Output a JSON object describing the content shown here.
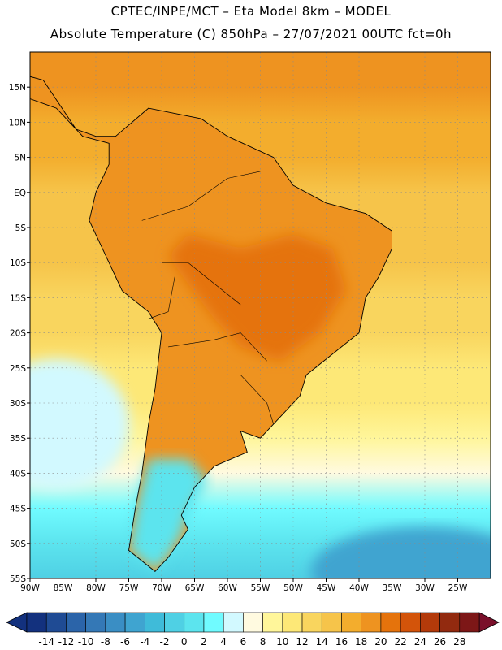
{
  "header": {
    "line1": "CPTEC/INPE/MCT –  Eta Model 8km – MODEL",
    "line2": "Absolute Temperature (C) 850hPa – 27/07/2021 00UTC fct=0h"
  },
  "map": {
    "lon_range": [
      -90,
      -20
    ],
    "lat_range": [
      -55,
      20
    ],
    "lat_ticks": [
      {
        "value": 15,
        "label": "15N"
      },
      {
        "value": 10,
        "label": "10N"
      },
      {
        "value": 5,
        "label": "5N"
      },
      {
        "value": 0,
        "label": "EQ"
      },
      {
        "value": -5,
        "label": "5S"
      },
      {
        "value": -10,
        "label": "10S"
      },
      {
        "value": -15,
        "label": "15S"
      },
      {
        "value": -20,
        "label": "20S"
      },
      {
        "value": -25,
        "label": "25S"
      },
      {
        "value": -30,
        "label": "30S"
      },
      {
        "value": -35,
        "label": "35S"
      },
      {
        "value": -40,
        "label": "40S"
      },
      {
        "value": -45,
        "label": "45S"
      },
      {
        "value": -50,
        "label": "50S"
      },
      {
        "value": -55,
        "label": "55S"
      }
    ],
    "lon_ticks": [
      {
        "value": -90,
        "label": "90W"
      },
      {
        "value": -85,
        "label": "85W"
      },
      {
        "value": -80,
        "label": "80W"
      },
      {
        "value": -75,
        "label": "75W"
      },
      {
        "value": -70,
        "label": "70W"
      },
      {
        "value": -65,
        "label": "65W"
      },
      {
        "value": -60,
        "label": "60W"
      },
      {
        "value": -55,
        "label": "55W"
      },
      {
        "value": -50,
        "label": "50W"
      },
      {
        "value": -45,
        "label": "45W"
      },
      {
        "value": -40,
        "label": "40W"
      },
      {
        "value": -35,
        "label": "35W"
      },
      {
        "value": -30,
        "label": "30W"
      },
      {
        "value": -25,
        "label": "25W"
      }
    ],
    "bands": [
      {
        "lat": 20,
        "temp": 19
      },
      {
        "lat": 15,
        "temp": 18
      },
      {
        "lat": 10,
        "temp": 17
      },
      {
        "lat": 5,
        "temp": 16
      },
      {
        "lat": 0,
        "temp": 15
      },
      {
        "lat": -5,
        "temp": 15
      },
      {
        "lat": -10,
        "temp": 14
      },
      {
        "lat": -15,
        "temp": 13
      },
      {
        "lat": -20,
        "temp": 12
      },
      {
        "lat": -25,
        "temp": 11
      },
      {
        "lat": -30,
        "temp": 10
      },
      {
        "lat": -35,
        "temp": 8
      },
      {
        "lat": -40,
        "temp": 6
      },
      {
        "lat": -45,
        "temp": 3
      },
      {
        "lat": -50,
        "temp": 1
      },
      {
        "lat": -55,
        "temp": -2
      }
    ],
    "southwest_cool_temp": 4,
    "land_temp": 18,
    "interior_hot_temp": 20,
    "patagonia_temp": 0,
    "far_south_cold_temp": -6
  },
  "colorbar": {
    "labels": [
      "-14",
      "-12",
      "-10",
      "-8",
      "-6",
      "-4",
      "-2",
      "0",
      "2",
      "4",
      "6",
      "8",
      "10",
      "12",
      "14",
      "16",
      "18",
      "20",
      "22",
      "24",
      "26",
      "28"
    ],
    "colors": [
      "#13317e",
      "#1f4b94",
      "#2b64a9",
      "#3478b6",
      "#3a8ec4",
      "#3fa4d0",
      "#3fbbd9",
      "#4fd0e4",
      "#5ce4ee",
      "#70fbff",
      "#d2f9ff",
      "#fffae0",
      "#fff69a",
      "#fde877",
      "#f9d55e",
      "#f6c44a",
      "#f3ad2d",
      "#ee9320",
      "#e5730c",
      "#d3540a",
      "#b33a0a",
      "#922a0f",
      "#7d1717"
    ],
    "left_arrow_color": "#13317e",
    "right_arrow_color": "#7a0f2a"
  }
}
